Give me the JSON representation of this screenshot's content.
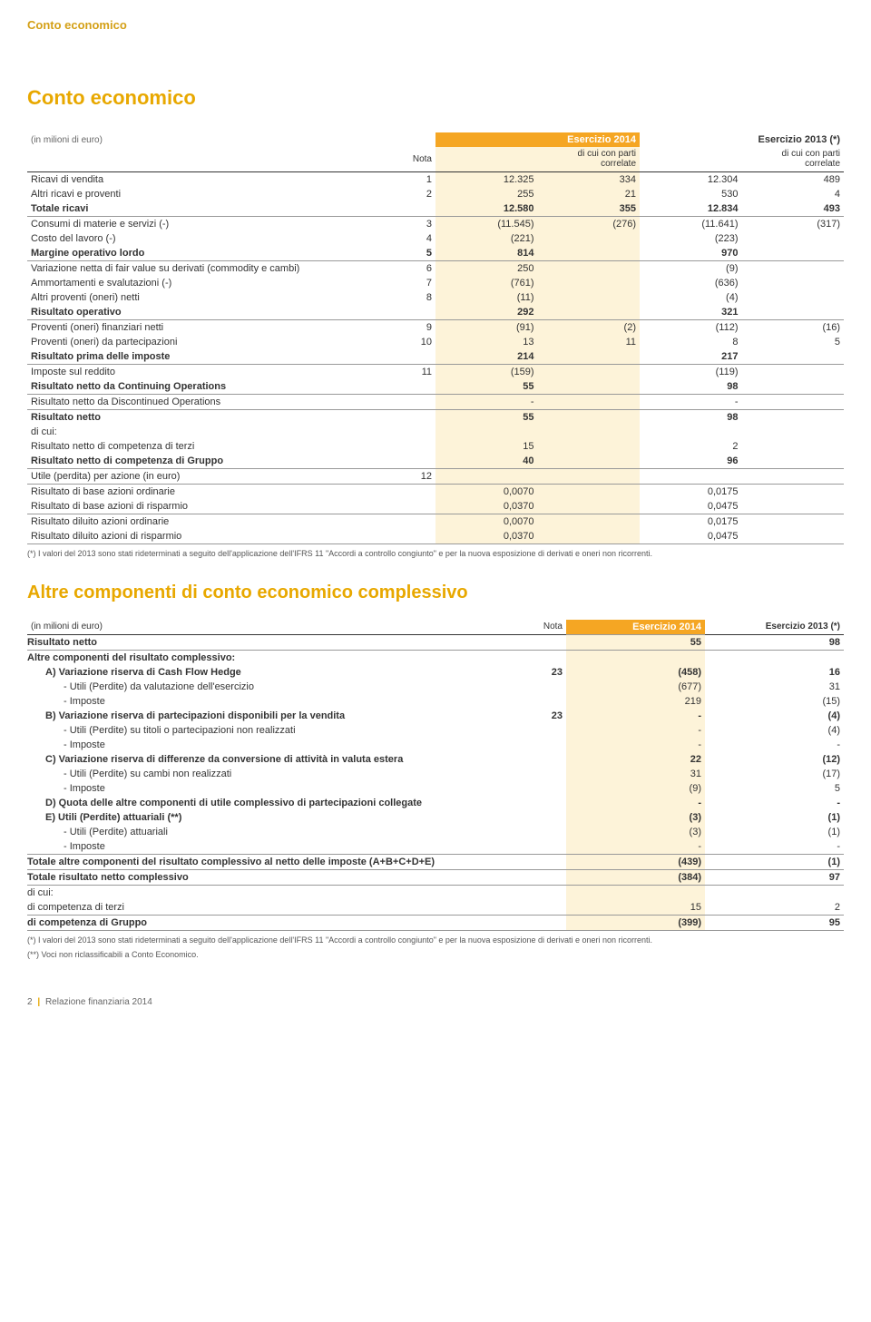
{
  "page_header": "Conto economico",
  "title1": "Conto economico",
  "unit_label": "(in milioni di euro)",
  "t1_header": {
    "nota": "Nota",
    "e2014": "Esercizio 2014",
    "e2013": "Esercizio 2013 (*)",
    "sub": "di cui con parti correlate"
  },
  "t1": [
    {
      "label": "Ricavi di vendita",
      "nota": "1",
      "v14": "12.325",
      "c14": "334",
      "v13": "12.304",
      "c13": "489",
      "hl": false,
      "top": true
    },
    {
      "label": "Altri ricavi e proventi",
      "nota": "2",
      "v14": "255",
      "c14": "21",
      "v13": "530",
      "c13": "4"
    },
    {
      "label": "Totale ricavi",
      "nota": "",
      "v14": "12.580",
      "c14": "355",
      "v13": "12.834",
      "c13": "493",
      "bold": true,
      "bot": true
    },
    {
      "label": "Consumi di materie e servizi (-)",
      "nota": "3",
      "v14": "(11.545)",
      "c14": "(276)",
      "v13": "(11.641)",
      "c13": "(317)"
    },
    {
      "label": "Costo del lavoro (-)",
      "nota": "4",
      "v14": "(221)",
      "c14": "",
      "v13": "(223)",
      "c13": ""
    },
    {
      "label": "Margine operativo lordo",
      "nota": "5",
      "v14": "814",
      "c14": "",
      "v13": "970",
      "c13": "",
      "bold": true,
      "bot": true
    },
    {
      "label": "Variazione netta di fair value su derivati (commodity e cambi)",
      "nota": "6",
      "v14": "250",
      "c14": "",
      "v13": "(9)",
      "c13": ""
    },
    {
      "label": "Ammortamenti e svalutazioni (-)",
      "nota": "7",
      "v14": "(761)",
      "c14": "",
      "v13": "(636)",
      "c13": ""
    },
    {
      "label": "Altri proventi (oneri) netti",
      "nota": "8",
      "v14": "(11)",
      "c14": "",
      "v13": "(4)",
      "c13": ""
    },
    {
      "label": "Risultato operativo",
      "nota": "",
      "v14": "292",
      "c14": "",
      "v13": "321",
      "c13": "",
      "bold": true,
      "bot": true
    },
    {
      "label": "Proventi (oneri) finanziari netti",
      "nota": "9",
      "v14": "(91)",
      "c14": "(2)",
      "v13": "(112)",
      "c13": "(16)"
    },
    {
      "label": "Proventi (oneri) da partecipazioni",
      "nota": "10",
      "v14": "13",
      "c14": "11",
      "v13": "8",
      "c13": "5"
    },
    {
      "label": "Risultato prima delle imposte",
      "nota": "",
      "v14": "214",
      "c14": "",
      "v13": "217",
      "c13": "",
      "bold": true,
      "bot": true
    },
    {
      "label": "Imposte sul reddito",
      "nota": "11",
      "v14": "(159)",
      "c14": "",
      "v13": "(119)",
      "c13": ""
    },
    {
      "label": "Risultato netto da Continuing Operations",
      "nota": "",
      "v14": "55",
      "c14": "",
      "v13": "98",
      "c13": "",
      "bold": true,
      "bot": true
    },
    {
      "label": "Risultato netto da Discontinued Operations",
      "nota": "",
      "v14": "-",
      "c14": "",
      "v13": "-",
      "c13": ""
    },
    {
      "label": "Risultato netto",
      "nota": "",
      "v14": "55",
      "c14": "",
      "v13": "98",
      "c13": "",
      "bold": true,
      "top": true
    },
    {
      "label": "di cui:",
      "nota": "",
      "v14": "",
      "c14": "",
      "v13": "",
      "c13": ""
    },
    {
      "label": "Risultato netto di competenza di terzi",
      "nota": "",
      "v14": "15",
      "c14": "",
      "v13": "2",
      "c13": ""
    },
    {
      "label": "Risultato netto di competenza di Gruppo",
      "nota": "",
      "v14": "40",
      "c14": "",
      "v13": "96",
      "c13": "",
      "bold": true,
      "bot": true
    },
    {
      "label": "Utile (perdita) per azione (in euro)",
      "nota": "12",
      "v14": "",
      "c14": "",
      "v13": "",
      "c13": ""
    },
    {
      "label": "Risultato di base azioni ordinarie",
      "nota": "",
      "v14": "0,0070",
      "c14": "",
      "v13": "0,0175",
      "c13": "",
      "top": true
    },
    {
      "label": "Risultato di base azioni di risparmio",
      "nota": "",
      "v14": "0,0370",
      "c14": "",
      "v13": "0,0475",
      "c13": "",
      "bot": true
    },
    {
      "label": "Risultato diluito azioni ordinarie",
      "nota": "",
      "v14": "0,0070",
      "c14": "",
      "v13": "0,0175",
      "c13": ""
    },
    {
      "label": "Risultato diluito azioni di risparmio",
      "nota": "",
      "v14": "0,0370",
      "c14": "",
      "v13": "0,0475",
      "c13": "",
      "bot": true
    }
  ],
  "footnote1": "(*) I valori del 2013 sono stati rideterminati a seguito dell'applicazione dell'IFRS 11 \"Accordi a controllo congiunto\" e per la nuova esposizione di derivati e oneri non ricorrenti.",
  "title2": "Altre componenti di conto economico complessivo",
  "t2_header": {
    "nota": "Nota",
    "e2014": "Esercizio 2014",
    "e2013": "Esercizio 2013 (*)"
  },
  "t2": [
    {
      "label": "Risultato netto",
      "nota": "",
      "v14": "55",
      "v13": "98",
      "bold": true,
      "top": true,
      "bot": true
    },
    {
      "label": "Altre componenti del risultato complessivo:",
      "nota": "",
      "v14": "",
      "v13": "",
      "bold": true
    },
    {
      "label": "A) Variazione riserva di Cash Flow Hedge",
      "nota": "23",
      "v14": "(458)",
      "v13": "16",
      "bold": true,
      "indent": 1
    },
    {
      "label": "- Utili (Perdite) da valutazione dell'esercizio",
      "nota": "",
      "v14": "(677)",
      "v13": "31",
      "indent": 2
    },
    {
      "label": "- Imposte",
      "nota": "",
      "v14": "219",
      "v13": "(15)",
      "indent": 2
    },
    {
      "label": "B) Variazione riserva di partecipazioni disponibili per la vendita",
      "nota": "23",
      "v14": "-",
      "v13": "(4)",
      "bold": true,
      "indent": 1
    },
    {
      "label": "- Utili (Perdite) su titoli o partecipazioni non realizzati",
      "nota": "",
      "v14": "-",
      "v13": "(4)",
      "indent": 2
    },
    {
      "label": "- Imposte",
      "nota": "",
      "v14": "-",
      "v13": "-",
      "indent": 2
    },
    {
      "label": "C) Variazione riserva di differenze da conversione di attività in valuta estera",
      "nota": "",
      "v14": "22",
      "v13": "(12)",
      "bold": true,
      "indent": 1
    },
    {
      "label": "- Utili (Perdite) su cambi non realizzati",
      "nota": "",
      "v14": "31",
      "v13": "(17)",
      "indent": 2
    },
    {
      "label": "- Imposte",
      "nota": "",
      "v14": "(9)",
      "v13": "5",
      "indent": 2
    },
    {
      "label": "D) Quota delle altre componenti di utile complessivo di partecipazioni collegate",
      "nota": "",
      "v14": "-",
      "v13": "-",
      "bold": true,
      "indent": 1
    },
    {
      "label": "E) Utili (Perdite) attuariali (**)",
      "nota": "",
      "v14": "(3)",
      "v13": "(1)",
      "bold": true,
      "indent": 1
    },
    {
      "label": "- Utili (Perdite) attuariali",
      "nota": "",
      "v14": "(3)",
      "v13": "(1)",
      "indent": 2
    },
    {
      "label": "- Imposte",
      "nota": "",
      "v14": "-",
      "v13": "-",
      "indent": 2
    },
    {
      "label": "Totale altre componenti del risultato complessivo al netto delle imposte (A+B+C+D+E)",
      "nota": "",
      "v14": "(439)",
      "v13": "(1)",
      "bold": true,
      "top": true
    },
    {
      "label": "Totale risultato netto complessivo",
      "nota": "",
      "v14": "(384)",
      "v13": "97",
      "bold": true,
      "top": true,
      "bot": true
    },
    {
      "label": "di cui:",
      "nota": "",
      "v14": "",
      "v13": ""
    },
    {
      "label": "di competenza di terzi",
      "nota": "",
      "v14": "15",
      "v13": "2"
    },
    {
      "label": "di competenza di Gruppo",
      "nota": "",
      "v14": "(399)",
      "v13": "95",
      "bold": true,
      "top": true,
      "bot": true
    }
  ],
  "footnote2a": "(*) I valori del 2013 sono stati rideterminati a seguito dell'applicazione dell'IFRS 11 \"Accordi a controllo congiunto\" e per la nuova esposizione di derivati e oneri non ricorrenti.",
  "footnote2b": "(**) Voci non riclassificabili a Conto Economico.",
  "footer_page": "2",
  "footer_text": "Relazione finanziaria 2014",
  "colors": {
    "accent": "#e8a800",
    "header_bg": "#f5a623",
    "highlight_bg": "#fdf3d9",
    "text": "#333333",
    "border": "#999999"
  }
}
